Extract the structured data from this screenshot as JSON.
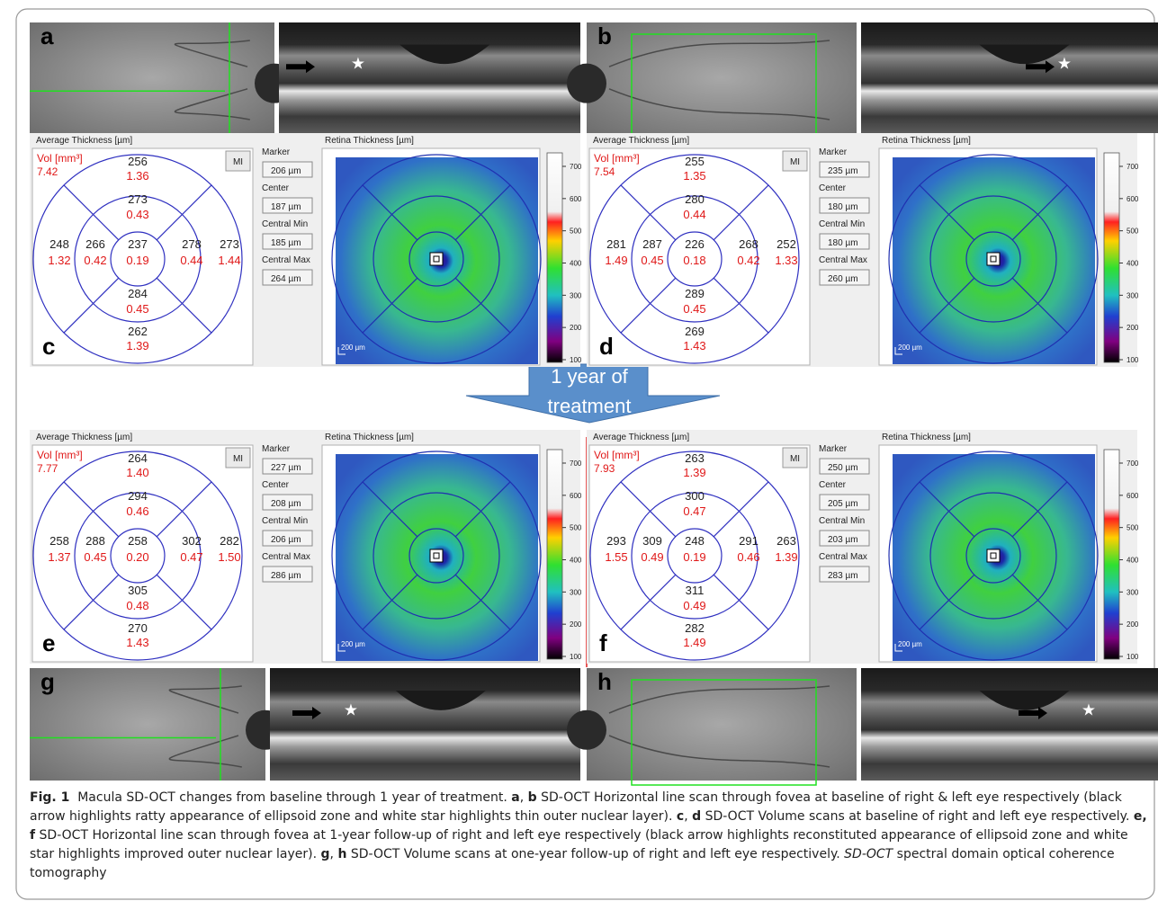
{
  "figure": {
    "image_panels": [
      {
        "letter": "a"
      },
      {
        "letter": "b"
      },
      {
        "letter": "g"
      },
      {
        "letter": "h"
      }
    ],
    "arrow_text": [
      "1 year of",
      "treatment"
    ],
    "common": {
      "avg_title": "Average Thickness [µm]",
      "retina_title": "Retina Thickness [µm]",
      "vol_label": "Vol [mm³]",
      "mi": "MI",
      "field_labels": [
        "Marker",
        "Center",
        "Central Min",
        "Central Max"
      ],
      "scale_label": "200 µm",
      "colorbar_ticks": [
        "700",
        "600",
        "500",
        "400",
        "300",
        "200",
        "100"
      ]
    },
    "thickness_panels": [
      {
        "letter": "c",
        "vol": "7.42",
        "fields": [
          "206 µm",
          "187 µm",
          "185 µm",
          "264 µm"
        ],
        "sectors": [
          {
            "thickness": "237",
            "volume": "0.19"
          },
          {
            "thickness": "273",
            "volume": "0.43"
          },
          {
            "thickness": "266",
            "volume": "0.42"
          },
          {
            "thickness": "278",
            "volume": "0.44"
          },
          {
            "thickness": "284",
            "volume": "0.45"
          },
          {
            "thickness": "256",
            "volume": "1.36"
          },
          {
            "thickness": "248",
            "volume": "1.32"
          },
          {
            "thickness": "273",
            "volume": "1.44"
          },
          {
            "thickness": "262",
            "volume": "1.39"
          }
        ]
      },
      {
        "letter": "d",
        "vol": "7.54",
        "fields": [
          "235 µm",
          "180 µm",
          "180 µm",
          "260 µm"
        ],
        "sectors": [
          {
            "thickness": "226",
            "volume": "0.18"
          },
          {
            "thickness": "280",
            "volume": "0.44"
          },
          {
            "thickness": "287",
            "volume": "0.45"
          },
          {
            "thickness": "268",
            "volume": "0.42"
          },
          {
            "thickness": "289",
            "volume": "0.45"
          },
          {
            "thickness": "255",
            "volume": "1.35"
          },
          {
            "thickness": "281",
            "volume": "1.49"
          },
          {
            "thickness": "252",
            "volume": "1.33"
          },
          {
            "thickness": "269",
            "volume": "1.43"
          }
        ]
      },
      {
        "letter": "e",
        "vol": "7.77",
        "fields": [
          "227 µm",
          "208 µm",
          "206 µm",
          "286 µm"
        ],
        "sectors": [
          {
            "thickness": "258",
            "volume": "0.20"
          },
          {
            "thickness": "294",
            "volume": "0.46"
          },
          {
            "thickness": "288",
            "volume": "0.45"
          },
          {
            "thickness": "302",
            "volume": "0.47"
          },
          {
            "thickness": "305",
            "volume": "0.48"
          },
          {
            "thickness": "264",
            "volume": "1.40"
          },
          {
            "thickness": "258",
            "volume": "1.37"
          },
          {
            "thickness": "282",
            "volume": "1.50"
          },
          {
            "thickness": "270",
            "volume": "1.43"
          }
        ]
      },
      {
        "letter": "f",
        "vol": "7.93",
        "fields": [
          "250 µm",
          "205 µm",
          "203 µm",
          "283 µm"
        ],
        "sectors": [
          {
            "thickness": "248",
            "volume": "0.19"
          },
          {
            "thickness": "300",
            "volume": "0.47"
          },
          {
            "thickness": "309",
            "volume": "0.49"
          },
          {
            "thickness": "291",
            "volume": "0.46"
          },
          {
            "thickness": "311",
            "volume": "0.49"
          },
          {
            "thickness": "263",
            "volume": "1.39"
          },
          {
            "thickness": "293",
            "volume": "1.55"
          },
          {
            "thickness": "263",
            "volume": "1.39"
          },
          {
            "thickness": "282",
            "volume": "1.49"
          }
        ]
      }
    ],
    "caption": [
      {
        "text": "Fig. 1",
        "style": "bold"
      },
      {
        "text": "  Macula SD-OCT changes from baseline through 1 year of treatment. ",
        "style": "normal"
      },
      {
        "text": "a",
        "style": "bold"
      },
      {
        "text": ", ",
        "style": "normal"
      },
      {
        "text": "b",
        "style": "bold"
      },
      {
        "text": " SD-OCT Horizontal line scan through fovea at baseline of right & left eye respectively (black arrow highlights ratty appearance of ellipsoid zone and white star highlights thin outer nuclear layer). ",
        "style": "normal"
      },
      {
        "text": "c",
        "style": "bold"
      },
      {
        "text": ", ",
        "style": "normal"
      },
      {
        "text": "d",
        "style": "bold"
      },
      {
        "text": " SD-OCT Volume scans at baseline of right and left eye respectively. ",
        "style": "normal"
      },
      {
        "text": "e, f",
        "style": "bold"
      },
      {
        "text": " SD-OCT Horizontal line scan through fovea at 1-year follow-up of right and left eye respectively (black arrow highlights reconstituted appearance of ellipsoid zone and white star highlights improved outer nuclear layer). ",
        "style": "normal"
      },
      {
        "text": "g",
        "style": "bold"
      },
      {
        "text": ", ",
        "style": "normal"
      },
      {
        "text": "h",
        "style": "bold"
      },
      {
        "text": " SD-OCT Volume scans at one-year follow-up of right and left eye respectively. ",
        "style": "normal"
      },
      {
        "text": "SD-OCT",
        "style": "italic"
      },
      {
        "text": " spectral domain optical coherence tomography",
        "style": "normal"
      }
    ]
  }
}
